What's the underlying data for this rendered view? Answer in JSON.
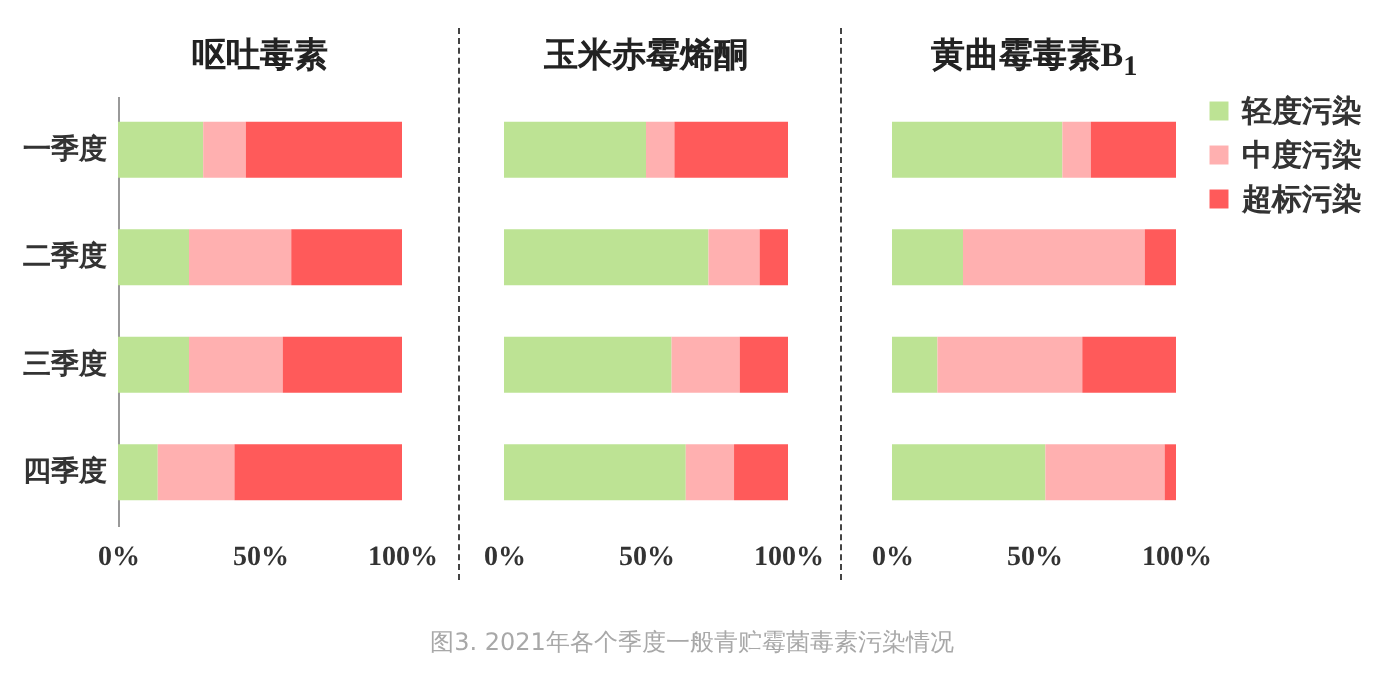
{
  "chart_data": [
    {
      "type": "bar",
      "orientation": "horizontal",
      "stacked": true,
      "title": "呕吐毒素",
      "categories": [
        "一季度",
        "二季度",
        "三季度",
        "四季度"
      ],
      "xlim": [
        0,
        100
      ],
      "xticks": [
        {
          "value": 0,
          "label": "0%"
        },
        {
          "value": 50,
          "label": "50%"
        },
        {
          "value": 100,
          "label": "100%"
        }
      ],
      "series": [
        {
          "color": "#bde394",
          "values": [
            30,
            25,
            25,
            14
          ]
        },
        {
          "color": "#ffb0b0",
          "values": [
            15,
            36,
            33,
            27
          ]
        },
        {
          "color": "#ff5a5a",
          "values": [
            55,
            39,
            42,
            59
          ]
        }
      ],
      "annotations": [
        "图3. 2021年各个季度一般青贮霉菌毒素污染情况"
      ]
    },
    {
      "type": "bar",
      "orientation": "horizontal",
      "stacked": true,
      "title": "玉米赤霉烯酮",
      "categories": [
        null,
        null,
        null,
        null
      ],
      "xlim": [
        0,
        100
      ],
      "xticks": [
        {
          "value": 0,
          "label": "0%"
        },
        {
          "value": 50,
          "label": "50%"
        },
        {
          "value": 100,
          "label": "100%"
        }
      ],
      "tick_labels": "x",
      "series": [
        {
          "color": "#bde394",
          "values": [
            50,
            72,
            59,
            64
          ]
        },
        {
          "color": "#ffb0b0",
          "values": [
            10,
            18,
            24,
            17
          ]
        },
        {
          "color": "#ff5a5a",
          "values": [
            40,
            10,
            17,
            19
          ]
        }
      ]
    },
    {
      "type": "bar",
      "orientation": "horizontal",
      "stacked": true,
      "title": "黄曲霉毒素B$_{1}$",
      "categories": [
        null,
        null,
        null,
        null
      ],
      "xlim": [
        0,
        100
      ],
      "xticks": [
        {
          "value": 0,
          "label": "0%"
        },
        {
          "value": 50,
          "label": "50%"
        },
        {
          "value": 100,
          "label": "100%"
        }
      ],
      "tick_labels": "x",
      "legend": "right",
      "series": [
        {
          "name": "轻度污染",
          "color": "#bde394",
          "values": [
            60,
            25,
            16,
            54
          ]
        },
        {
          "name": "中度污染",
          "color": "#ffb0b0",
          "values": [
            10,
            64,
            51,
            42
          ]
        },
        {
          "name": "超标污染",
          "color": "#ff5a5a",
          "values": [
            30,
            11,
            33,
            4
          ]
        }
      ]
    }
  ]
}
